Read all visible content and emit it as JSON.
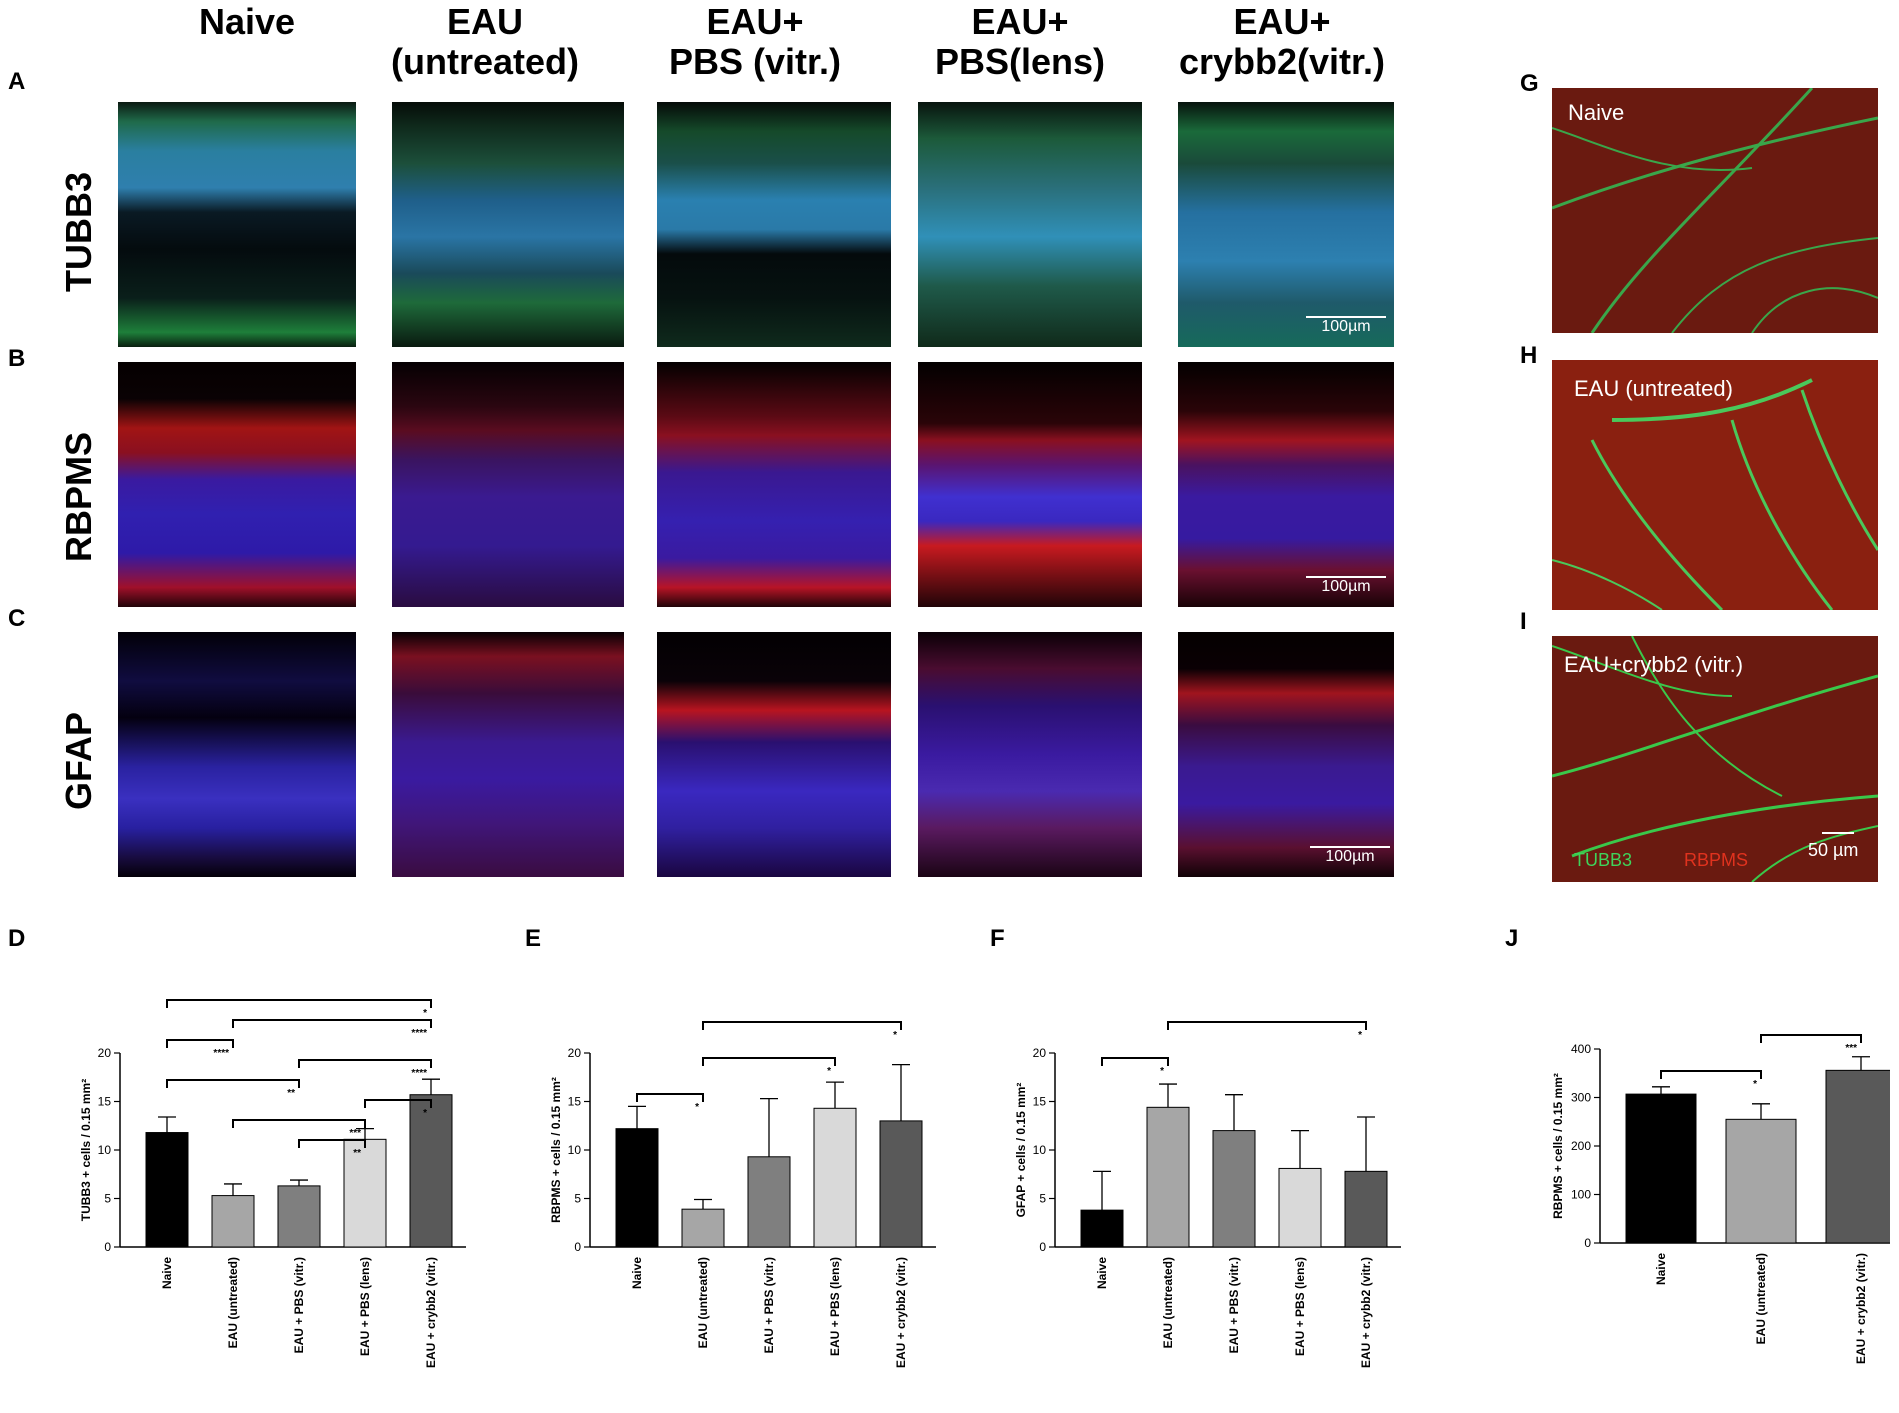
{
  "column_headers": [
    "Naive",
    "EAU\n(untreated)",
    "EAU+\nPBS (vitr.)",
    "EAU+\nPBS(lens)",
    "EAU+\ncrybb2(vitr.)"
  ],
  "row_labels": [
    "TUBB3",
    "RBPMS",
    "GFAP"
  ],
  "panel_letters": {
    "A": "A",
    "B": "B",
    "C": "C",
    "D": "D",
    "E": "E",
    "F": "F",
    "G": "G",
    "H": "H",
    "I": "I",
    "J": "J"
  },
  "scale_bar_label": "100µm",
  "flatmount": {
    "g_label": "Naive",
    "h_label": "EAU (untreated)",
    "i_label": "EAU+crybb2 (vitr.)",
    "legend_green": "TUBB3",
    "legend_red": "RBPMS",
    "scale_label": "50 µm",
    "green_color": "#3fd35a",
    "red_color": "#e0321e"
  },
  "chart_data": [
    {
      "type": "bar",
      "panel": "D",
      "ylabel": "TUBB3 + cells / 0.15 mm²",
      "ylim": [
        0,
        20
      ],
      "yticks": [
        0,
        5,
        10,
        15,
        20
      ],
      "categories": [
        "Naive",
        "EAU (untreated)",
        "EAU + PBS (vitr.)",
        "EAU + PBS (lens)",
        "EAU + crybb2 (vitr.)"
      ],
      "values": [
        11.8,
        5.3,
        6.3,
        11.1,
        15.7
      ],
      "errors": [
        1.6,
        1.2,
        0.6,
        1.1,
        1.6
      ],
      "colors": [
        "#000000",
        "#a6a6a6",
        "#7f7f7f",
        "#d9d9d9",
        "#595959"
      ],
      "brackets": [
        {
          "from": 0,
          "to": 4,
          "label": "*"
        },
        {
          "from": 1,
          "to": 4,
          "label": "****"
        },
        {
          "from": 0,
          "to": 1,
          "label": "****"
        },
        {
          "from": 2,
          "to": 4,
          "label": "****"
        },
        {
          "from": 0,
          "to": 2,
          "label": "**"
        },
        {
          "from": 3,
          "to": 4,
          "label": "*"
        },
        {
          "from": 1,
          "to": 3,
          "label": "***"
        },
        {
          "from": 2,
          "to": 3,
          "label": "**"
        }
      ]
    },
    {
      "type": "bar",
      "panel": "E",
      "ylabel": "RBPMS + cells / 0.15 mm²",
      "ylim": [
        0,
        20
      ],
      "yticks": [
        0,
        5,
        10,
        15,
        20
      ],
      "categories": [
        "Naive",
        "EAU (untreated)",
        "EAU + PBS (vitr.)",
        "EAU + PBS (lens)",
        "EAU + crybb2 (vitr.)"
      ],
      "values": [
        12.2,
        3.9,
        9.3,
        14.3,
        13.0
      ],
      "errors": [
        2.3,
        1.0,
        6.0,
        2.7,
        5.8
      ],
      "colors": [
        "#000000",
        "#a6a6a6",
        "#7f7f7f",
        "#d9d9d9",
        "#595959"
      ],
      "brackets": [
        {
          "from": 1,
          "to": 4,
          "label": "*"
        },
        {
          "from": 1,
          "to": 3,
          "label": "*"
        },
        {
          "from": 0,
          "to": 1,
          "label": "*"
        }
      ]
    },
    {
      "type": "bar",
      "panel": "F",
      "ylabel": "GFAP + cells / 0.15 mm²",
      "ylim": [
        0,
        20
      ],
      "yticks": [
        0,
        5,
        10,
        15,
        20
      ],
      "categories": [
        "Naive",
        "EAU (untreated)",
        "EAU + PBS (vitr.)",
        "EAU + PBS (lens)",
        "EAU + crybb2 (vitr.)"
      ],
      "values": [
        3.8,
        14.4,
        12.0,
        8.1,
        7.8
      ],
      "errors": [
        4.0,
        2.4,
        3.7,
        3.9,
        5.6
      ],
      "colors": [
        "#000000",
        "#a6a6a6",
        "#7f7f7f",
        "#d9d9d9",
        "#595959"
      ],
      "brackets": [
        {
          "from": 1,
          "to": 4,
          "label": "*"
        },
        {
          "from": 0,
          "to": 1,
          "label": "*"
        }
      ]
    },
    {
      "type": "bar",
      "panel": "J",
      "ylabel": "RBPMS + cells / 0.15 mm²",
      "ylim": [
        0,
        400
      ],
      "yticks": [
        0,
        100,
        200,
        300,
        400
      ],
      "categories": [
        "Naive",
        "EAU (untreated)",
        "EAU + crybb2 (vitr.)"
      ],
      "values": [
        307,
        255,
        356
      ],
      "errors": [
        15,
        32,
        28
      ],
      "colors": [
        "#000000",
        "#a6a6a6",
        "#595959"
      ],
      "brackets": [
        {
          "from": 1,
          "to": 2,
          "label": "***"
        },
        {
          "from": 0,
          "to": 1,
          "label": "*"
        }
      ]
    }
  ]
}
